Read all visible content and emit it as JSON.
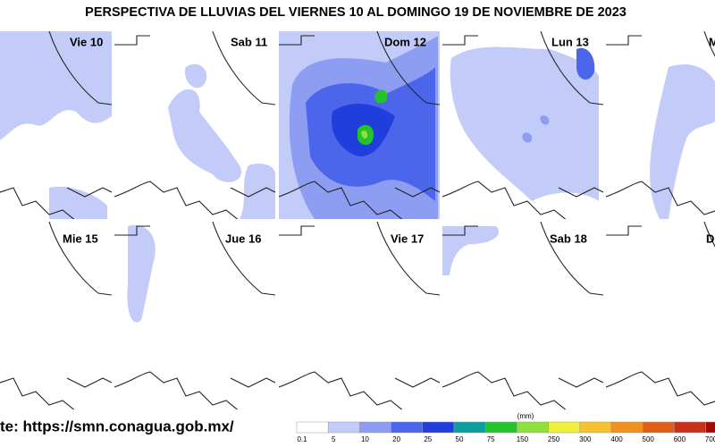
{
  "header": {
    "title": "PERSPECTIVA DE LLUVIAS DEL VIERNES 10 AL DOMINGO 19 DE NOVIEMBRE DE 2023"
  },
  "panels": [
    {
      "label": "Vie 10"
    },
    {
      "label": "Sab 11"
    },
    {
      "label": "Dom 12"
    },
    {
      "label": "Lun 13"
    },
    {
      "label": "M"
    },
    {
      "label": "Mie 15"
    },
    {
      "label": "Jue 16"
    },
    {
      "label": "Vie 17"
    },
    {
      "label": "Sab 18"
    },
    {
      "label": "D"
    }
  ],
  "source": "te: https://smn.conagua.gob.mx/",
  "legend": {
    "unit": "(mm)",
    "labels": [
      "0.1",
      "5",
      "10",
      "20",
      "25",
      "50",
      "75",
      "150",
      "250",
      "300",
      "400",
      "500",
      "600",
      "700"
    ],
    "colors": [
      "#ffffff",
      "#c3cbf8",
      "#8d9df2",
      "#4b66ea",
      "#1f3edb",
      "#0c9e9e",
      "#22c42a",
      "#8fe03c",
      "#f0f03a",
      "#f6c22e",
      "#f0901e",
      "#e0601a",
      "#c8301a",
      "#a00a0a"
    ]
  }
}
